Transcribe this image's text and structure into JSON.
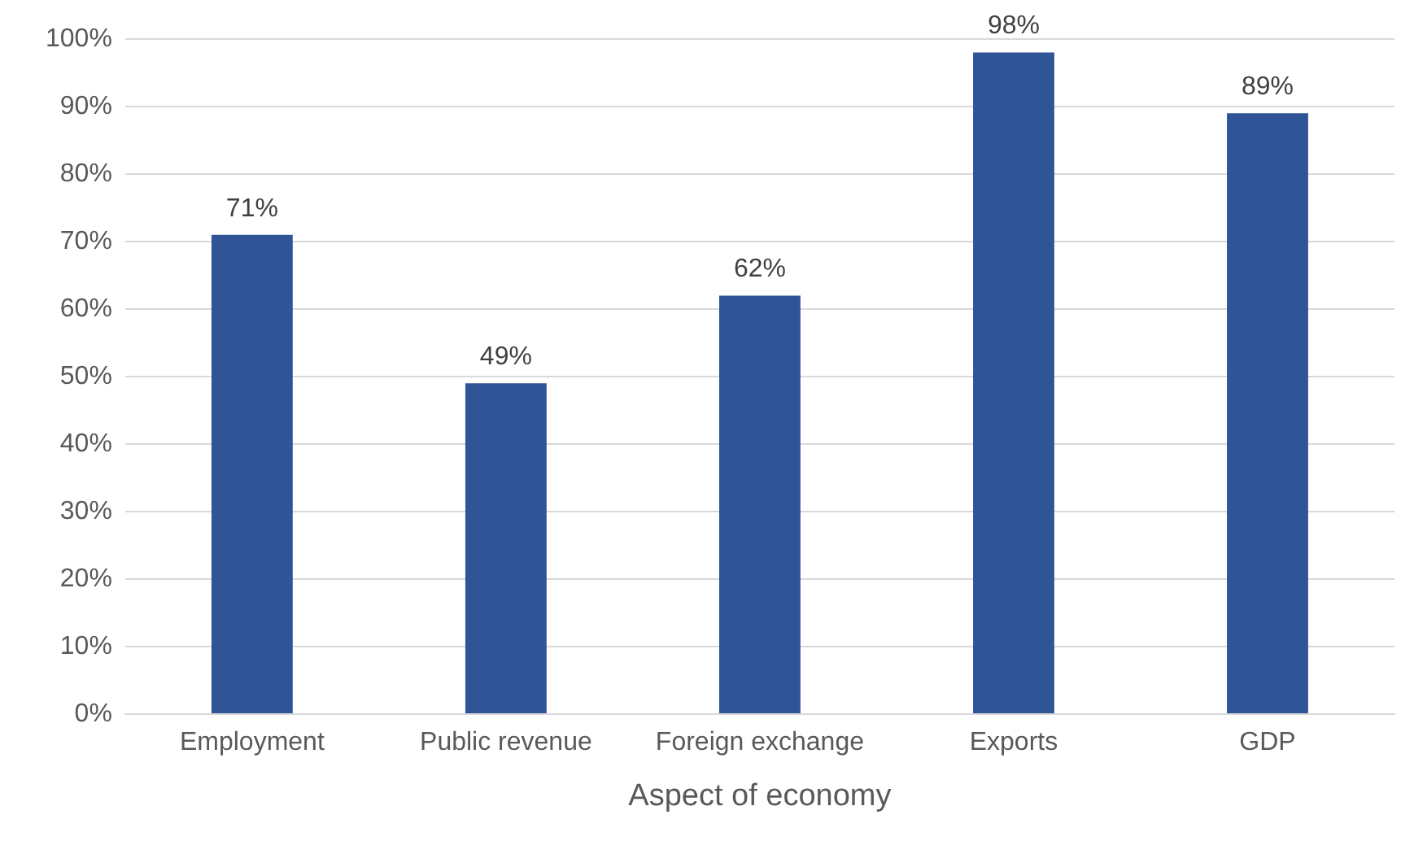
{
  "chart_data": {
    "type": "bar",
    "xlabel": "Aspect of economy",
    "categories": [
      "Employment",
      "Public revenue",
      "Foreign exchange",
      "Exports",
      "GDP"
    ],
    "values": [
      71,
      49,
      62,
      98,
      89
    ],
    "color": "#2f5597",
    "value_labels": [
      "71%",
      "49%",
      "62%",
      "98%",
      "89%"
    ],
    "ylim": [
      0,
      100
    ],
    "yticks": [
      {
        "value": 0,
        "label": "0%"
      },
      {
        "value": 10,
        "label": "10%"
      },
      {
        "value": 20,
        "label": "20%"
      },
      {
        "value": 30,
        "label": "30%"
      },
      {
        "value": 40,
        "label": "40%"
      },
      {
        "value": 50,
        "label": "50%"
      },
      {
        "value": 60,
        "label": "60%"
      },
      {
        "value": 70,
        "label": "70%"
      },
      {
        "value": 80,
        "label": "80%"
      },
      {
        "value": 90,
        "label": "90%"
      },
      {
        "value": 100,
        "label": "100%"
      }
    ],
    "grid": "y",
    "legend": false
  }
}
